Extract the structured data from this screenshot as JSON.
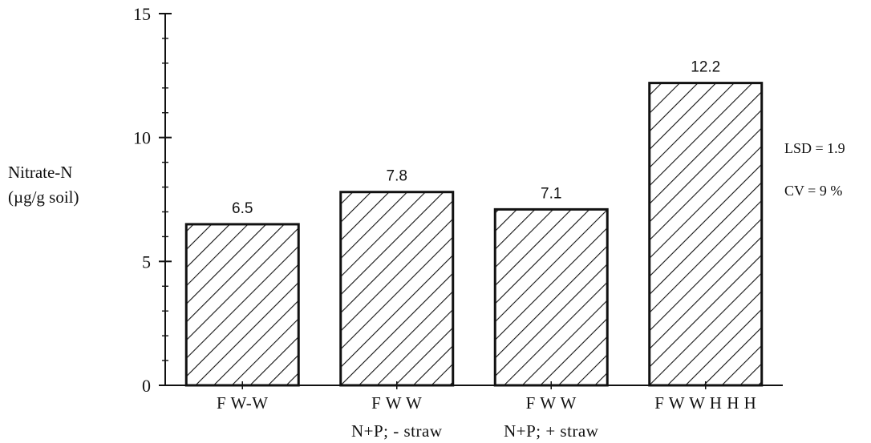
{
  "chart_data": {
    "type": "bar",
    "title": "",
    "ylabel": [
      "Nitrate-N",
      "(µg/g soil)"
    ],
    "xlabel": "",
    "ylim": [
      0,
      15
    ],
    "yticks": [
      0,
      5,
      10,
      15
    ],
    "grid": false,
    "categories": [
      [
        "F W-W",
        ""
      ],
      [
        "F W W",
        "N+P; - straw"
      ],
      [
        "F W W",
        "N+P; + straw"
      ],
      [
        "F W W H H H",
        ""
      ]
    ],
    "values": [
      6.5,
      7.8,
      7.1,
      12.2
    ],
    "data_labels": [
      "6.5",
      "7.8",
      "7.1",
      "12.2"
    ],
    "annotations": [
      "LSD = 1.9",
      "CV = 9 %"
    ],
    "bar_pattern": "diagonal-hatch"
  }
}
